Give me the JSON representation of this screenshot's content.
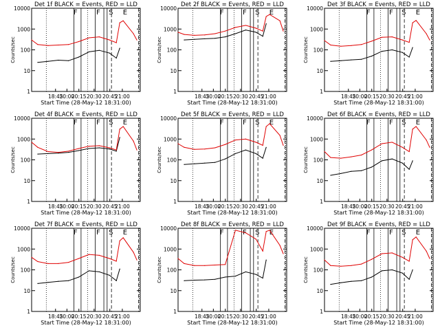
{
  "chart_data": [
    {
      "type": "line",
      "title": "Det 1f BLACK = Events, RED = LLD",
      "xlabel": "Start Time (28-May-12 18:31:00)",
      "ylabel": "Counts/sec",
      "yscale": "log",
      "ylim": [
        1,
        10000
      ],
      "xlim": [
        "18:31",
        "21:10"
      ],
      "xticks": [
        "18:45",
        "20:00",
        "20:15",
        "20:30",
        "20:45",
        "21:00"
      ],
      "yticks": [
        "1",
        "10",
        "100",
        "1000",
        "10000"
      ],
      "markers": [
        "F",
        "F",
        "S",
        "E"
      ],
      "series": [
        {
          "name": "Events",
          "color": "#000000",
          "x": [
            "18:40",
            "18:55",
            "19:10",
            "19:25",
            "19:40",
            "19:55",
            "20:10",
            "20:25",
            "20:35",
            "20:40"
          ],
          "values": [
            25,
            28,
            32,
            30,
            45,
            80,
            95,
            70,
            40,
            120
          ]
        },
        {
          "name": "LLD",
          "color": "#e00000",
          "x": [
            "18:31",
            "18:40",
            "18:55",
            "19:10",
            "19:25",
            "19:40",
            "19:55",
            "20:10",
            "20:25",
            "20:35",
            "20:40",
            "20:45",
            "21:00",
            "21:05"
          ],
          "values": [
            300,
            180,
            160,
            170,
            180,
            250,
            380,
            420,
            300,
            220,
            2000,
            2500,
            600,
            300
          ]
        }
      ]
    },
    {
      "type": "line",
      "title": "Det 2f BLACK = Events, RED = LLD",
      "xlabel": "Start Time (28-May-12 18:31:00)",
      "ylabel": "Counts/sec",
      "yscale": "log",
      "ylim": [
        1,
        10000
      ],
      "xlim": [
        "18:31",
        "21:10"
      ],
      "xticks": [
        "18:45",
        "20:00",
        "20:15",
        "20:30",
        "20:45",
        "21:00"
      ],
      "yticks": [
        "1",
        "10",
        "100",
        "1000",
        "10000"
      ],
      "markers": [
        "F",
        "F",
        "S",
        "E"
      ],
      "series": [
        {
          "name": "Events",
          "color": "#000000",
          "x": [
            "18:40",
            "18:55",
            "19:10",
            "19:25",
            "19:40",
            "19:55",
            "20:10",
            "20:25",
            "20:35",
            "20:40"
          ],
          "values": [
            300,
            320,
            340,
            360,
            420,
            600,
            900,
            700,
            450,
            1800
          ]
        },
        {
          "name": "LLD",
          "color": "#e00000",
          "x": [
            "18:31",
            "18:40",
            "18:55",
            "19:10",
            "19:25",
            "19:40",
            "19:55",
            "20:10",
            "20:25",
            "20:35",
            "20:40",
            "20:45",
            "21:00",
            "21:05"
          ],
          "values": [
            700,
            550,
            500,
            520,
            600,
            800,
            1200,
            1500,
            1100,
            800,
            4000,
            5000,
            2500,
            800
          ]
        }
      ]
    },
    {
      "type": "line",
      "title": "Det 3f BLACK = Events, RED = LLD",
      "xlabel": "Start Time (28-May-12 18:31:00)",
      "ylabel": "Counts/sec",
      "yscale": "log",
      "ylim": [
        1,
        10000
      ],
      "xlim": [
        "18:31",
        "21:10"
      ],
      "xticks": [
        "18:45",
        "20:00",
        "20:15",
        "20:30",
        "20:45",
        "21:00"
      ],
      "yticks": [
        "1",
        "10",
        "100",
        "1000",
        "10000"
      ],
      "markers": [
        "F",
        "F",
        "S",
        "E"
      ],
      "series": [
        {
          "name": "Events",
          "color": "#000000",
          "x": [
            "18:40",
            "18:55",
            "19:10",
            "19:25",
            "19:40",
            "19:55",
            "20:10",
            "20:25",
            "20:35",
            "20:40"
          ],
          "values": [
            28,
            30,
            33,
            35,
            50,
            85,
            100,
            75,
            45,
            130
          ]
        },
        {
          "name": "LLD",
          "color": "#e00000",
          "x": [
            "18:31",
            "18:40",
            "18:55",
            "19:10",
            "19:25",
            "19:40",
            "19:55",
            "20:10",
            "20:25",
            "20:35",
            "20:40",
            "20:45",
            "21:00",
            "21:05"
          ],
          "values": [
            280,
            170,
            150,
            160,
            180,
            260,
            400,
            420,
            300,
            230,
            2000,
            2600,
            600,
            300
          ]
        }
      ]
    },
    {
      "type": "line",
      "title": "Det 4f BLACK = Events, RED = LLD",
      "xlabel": "Start Time (28-May-12 18:31:00)",
      "ylabel": "Counts/sec",
      "yscale": "log",
      "ylim": [
        1,
        10000
      ],
      "xlim": [
        "18:31",
        "21:10"
      ],
      "xticks": [
        "18:45",
        "20:00",
        "20:15",
        "20:30",
        "20:45",
        "21:00"
      ],
      "yticks": [
        "1",
        "10",
        "100",
        "1000",
        "10000"
      ],
      "markers": [
        "F",
        "F",
        "S",
        "E"
      ],
      "series": [
        {
          "name": "Events",
          "color": "#000000",
          "x": [
            "18:40",
            "18:55",
            "19:10",
            "19:25",
            "19:40",
            "19:55",
            "20:10",
            "20:25",
            "20:35",
            "20:40"
          ],
          "values": [
            190,
            200,
            210,
            230,
            280,
            350,
            380,
            330,
            260,
            1200
          ]
        },
        {
          "name": "LLD",
          "color": "#e00000",
          "x": [
            "18:31",
            "18:40",
            "18:55",
            "19:10",
            "19:25",
            "19:40",
            "19:55",
            "20:10",
            "20:25",
            "20:35",
            "20:40",
            "20:45",
            "21:00",
            "21:05"
          ],
          "values": [
            700,
            400,
            250,
            230,
            260,
            350,
            450,
            480,
            380,
            300,
            3000,
            4000,
            800,
            300
          ]
        }
      ]
    },
    {
      "type": "line",
      "title": "Det 5f BLACK = Events, RED = LLD",
      "xlabel": "Start Time (28-May-12 18:31:00)",
      "ylabel": "Counts/sec",
      "yscale": "log",
      "ylim": [
        1,
        10000
      ],
      "xlim": [
        "18:31",
        "21:10"
      ],
      "xticks": [
        "18:45",
        "20:00",
        "20:15",
        "20:30",
        "20:45",
        "21:00"
      ],
      "yticks": [
        "1",
        "10",
        "100",
        "1000",
        "10000"
      ],
      "markers": [
        "F",
        "F",
        "S",
        "E"
      ],
      "series": [
        {
          "name": "Events",
          "color": "#000000",
          "x": [
            "18:40",
            "18:55",
            "19:10",
            "19:25",
            "19:40",
            "19:55",
            "20:10",
            "20:25",
            "20:35",
            "20:40"
          ],
          "values": [
            60,
            65,
            70,
            75,
            110,
            200,
            300,
            200,
            120,
            400
          ]
        },
        {
          "name": "LLD",
          "color": "#e00000",
          "x": [
            "18:31",
            "18:40",
            "18:55",
            "19:10",
            "19:25",
            "19:40",
            "19:55",
            "20:10",
            "20:25",
            "20:35",
            "20:40",
            "20:45",
            "21:00",
            "21:05"
          ],
          "values": [
            600,
            400,
            320,
            330,
            380,
            550,
            900,
            1000,
            700,
            500,
            4000,
            5500,
            1500,
            500
          ]
        }
      ]
    },
    {
      "type": "line",
      "title": "Det 6f BLACK = Events, RED = LLD",
      "xlabel": "Start Time (28-May-12 18:31:00)",
      "ylabel": "Counts/sec",
      "yscale": "log",
      "ylim": [
        1,
        10000
      ],
      "xlim": [
        "18:31",
        "21:10"
      ],
      "xticks": [
        "18:45",
        "20:00",
        "20:15",
        "20:30",
        "20:45",
        "21:00"
      ],
      "yticks": [
        "1",
        "10",
        "100",
        "1000",
        "10000"
      ],
      "markers": [
        "F",
        "F",
        "S",
        "E"
      ],
      "series": [
        {
          "name": "Events",
          "color": "#000000",
          "x": [
            "18:40",
            "18:55",
            "19:10",
            "19:25",
            "19:40",
            "19:55",
            "20:10",
            "20:25",
            "20:35",
            "20:40"
          ],
          "values": [
            18,
            22,
            28,
            30,
            45,
            90,
            110,
            70,
            35,
            90
          ]
        },
        {
          "name": "LLD",
          "color": "#e00000",
          "x": [
            "18:31",
            "18:40",
            "18:55",
            "19:10",
            "19:25",
            "19:40",
            "19:55",
            "20:10",
            "20:25",
            "20:35",
            "20:40",
            "20:45",
            "21:00",
            "21:05"
          ],
          "values": [
            250,
            130,
            120,
            140,
            170,
            300,
            600,
            700,
            400,
            250,
            3000,
            4000,
            900,
            400
          ]
        }
      ]
    },
    {
      "type": "line",
      "title": "Det 7f BLACK = Events, RED = LLD",
      "xlabel": "Start Time (28-May-12 18:31:00)",
      "ylabel": "Counts/sec",
      "yscale": "log",
      "ylim": [
        1,
        10000
      ],
      "xlim": [
        "18:31",
        "21:10"
      ],
      "xticks": [
        "18:45",
        "20:00",
        "20:15",
        "20:30",
        "20:45",
        "21:00"
      ],
      "yticks": [
        "1",
        "10",
        "100",
        "1000",
        "10000"
      ],
      "markers": [
        "F",
        "F",
        "S",
        "E"
      ],
      "series": [
        {
          "name": "Events",
          "color": "#000000",
          "x": [
            "18:40",
            "18:55",
            "19:10",
            "19:25",
            "19:40",
            "19:55",
            "20:10",
            "20:25",
            "20:35",
            "20:40"
          ],
          "values": [
            22,
            25,
            28,
            30,
            45,
            90,
            80,
            55,
            30,
            110
          ]
        },
        {
          "name": "LLD",
          "color": "#e00000",
          "x": [
            "18:31",
            "18:40",
            "18:55",
            "19:10",
            "19:25",
            "19:40",
            "19:55",
            "20:10",
            "20:25",
            "20:35",
            "20:40",
            "20:45",
            "21:00",
            "21:05"
          ],
          "values": [
            400,
            250,
            200,
            200,
            230,
            350,
            550,
            500,
            350,
            260,
            2500,
            3500,
            700,
            300
          ]
        }
      ]
    },
    {
      "type": "line",
      "title": "Det 8f BLACK = Events, RED = LLD",
      "xlabel": "Start Time (28-May-12 18:31:00)",
      "ylabel": "Counts/sec",
      "yscale": "log",
      "ylim": [
        1,
        10000
      ],
      "xlim": [
        "18:31",
        "21:10"
      ],
      "xticks": [
        "18:45",
        "20:00",
        "20:15",
        "20:30",
        "20:45",
        "21:00"
      ],
      "yticks": [
        "1",
        "10",
        "100",
        "1000",
        "10000"
      ],
      "markers": [
        "F",
        "F",
        "S",
        "E"
      ],
      "series": [
        {
          "name": "Events",
          "color": "#000000",
          "x": [
            "18:40",
            "18:55",
            "19:10",
            "19:25",
            "19:40",
            "19:55",
            "20:10",
            "20:25",
            "20:35",
            "20:40"
          ],
          "values": [
            30,
            32,
            33,
            35,
            45,
            50,
            80,
            60,
            40,
            300
          ]
        },
        {
          "name": "LLD",
          "color": "#e00000",
          "x": [
            "18:31",
            "18:40",
            "18:55",
            "19:10",
            "19:25",
            "19:40",
            "19:55",
            "20:10",
            "20:25",
            "20:35",
            "20:40",
            "20:45",
            "21:00",
            "21:05"
          ],
          "values": [
            350,
            200,
            160,
            160,
            170,
            180,
            8000,
            6000,
            3000,
            800,
            7000,
            8000,
            1500,
            600
          ]
        }
      ]
    },
    {
      "type": "line",
      "title": "Det 9f BLACK = Events, RED = LLD",
      "xlabel": "Start Time (28-May-12 18:31:00)",
      "ylabel": "Counts/sec",
      "yscale": "log",
      "ylim": [
        1,
        10000
      ],
      "xlim": [
        "18:31",
        "21:10"
      ],
      "xticks": [
        "18:45",
        "20:00",
        "20:15",
        "20:30",
        "20:45",
        "21:00"
      ],
      "yticks": [
        "1",
        "10",
        "100",
        "1000",
        "10000"
      ],
      "markers": [
        "F",
        "F",
        "S",
        "E"
      ],
      "series": [
        {
          "name": "Events",
          "color": "#000000",
          "x": [
            "18:40",
            "18:55",
            "19:10",
            "19:25",
            "19:40",
            "19:55",
            "20:10",
            "20:25",
            "20:35",
            "20:40"
          ],
          "values": [
            20,
            24,
            28,
            30,
            45,
            90,
            100,
            70,
            35,
            100
          ]
        },
        {
          "name": "LLD",
          "color": "#e00000",
          "x": [
            "18:31",
            "18:40",
            "18:55",
            "19:10",
            "19:25",
            "19:40",
            "19:55",
            "20:10",
            "20:25",
            "20:35",
            "20:40",
            "20:45",
            "21:00",
            "21:05"
          ],
          "values": [
            300,
            160,
            150,
            160,
            190,
            320,
            600,
            650,
            400,
            260,
            2800,
            3800,
            800,
            350
          ]
        }
      ]
    }
  ]
}
